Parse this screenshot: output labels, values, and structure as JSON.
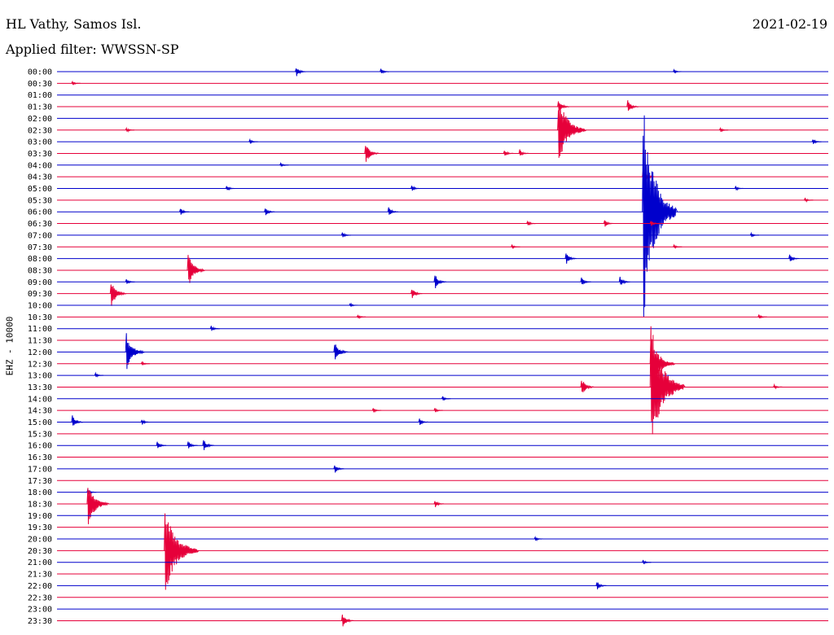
{
  "header": {
    "station": "HL Vathy, Samos Isl.",
    "filter": "Applied filter: WWSSN-SP",
    "date": "2021-02-19"
  },
  "axis": {
    "channel_label": "EHZ - 10000"
  },
  "colors": {
    "even_line": "#0000cc",
    "odd_line": "#e6003a"
  },
  "chart_data": {
    "type": "line",
    "title": "",
    "xlabel": "",
    "ylabel": "EHZ - 10000",
    "rows": [
      {
        "label": "00:00",
        "events": [
          [
            0.31,
            7
          ],
          [
            0.42,
            4
          ],
          [
            0.8,
            3
          ]
        ]
      },
      {
        "label": "00:30",
        "events": [
          [
            0.02,
            3
          ]
        ]
      },
      {
        "label": "01:00",
        "events": []
      },
      {
        "label": "01:30",
        "events": [
          [
            0.65,
            9
          ],
          [
            0.74,
            9
          ]
        ]
      },
      {
        "label": "02:00",
        "events": []
      },
      {
        "label": "02:30",
        "events": [
          [
            0.09,
            3
          ],
          [
            0.65,
            44
          ],
          [
            0.86,
            3
          ]
        ]
      },
      {
        "label": "03:00",
        "events": [
          [
            0.25,
            3
          ],
          [
            0.98,
            4
          ]
        ]
      },
      {
        "label": "03:30",
        "events": [
          [
            0.4,
            14
          ],
          [
            0.58,
            5
          ],
          [
            0.6,
            5
          ]
        ]
      },
      {
        "label": "04:00",
        "events": [
          [
            0.29,
            3
          ]
        ]
      },
      {
        "label": "04:30",
        "events": [
          [
            0.76,
            10
          ]
        ]
      },
      {
        "label": "05:00",
        "events": [
          [
            0.22,
            4
          ],
          [
            0.46,
            4
          ],
          [
            0.88,
            3
          ]
        ]
      },
      {
        "label": "05:30",
        "events": [
          [
            0.97,
            3
          ]
        ]
      },
      {
        "label": "06:00",
        "events": [
          [
            0.16,
            5
          ],
          [
            0.27,
            6
          ],
          [
            0.43,
            6
          ],
          [
            0.76,
            140
          ]
        ]
      },
      {
        "label": "06:30",
        "events": [
          [
            0.61,
            4
          ],
          [
            0.71,
            5
          ],
          [
            0.77,
            4
          ]
        ]
      },
      {
        "label": "07:00",
        "events": [
          [
            0.37,
            4
          ],
          [
            0.9,
            3
          ]
        ]
      },
      {
        "label": "07:30",
        "events": [
          [
            0.59,
            3
          ],
          [
            0.8,
            3
          ]
        ]
      },
      {
        "label": "08:00",
        "events": [
          [
            0.66,
            8
          ],
          [
            0.95,
            6
          ]
        ]
      },
      {
        "label": "08:30",
        "events": [
          [
            0.17,
            22
          ]
        ]
      },
      {
        "label": "09:00",
        "events": [
          [
            0.09,
            4
          ],
          [
            0.49,
            10
          ],
          [
            0.68,
            6
          ],
          [
            0.73,
            7
          ]
        ]
      },
      {
        "label": "09:30",
        "events": [
          [
            0.07,
            18
          ],
          [
            0.46,
            8
          ]
        ]
      },
      {
        "label": "10:00",
        "events": [
          [
            0.38,
            3
          ]
        ]
      },
      {
        "label": "10:30",
        "events": [
          [
            0.39,
            3
          ],
          [
            0.91,
            3
          ]
        ]
      },
      {
        "label": "11:00",
        "events": [
          [
            0.2,
            4
          ]
        ]
      },
      {
        "label": "11:30",
        "events": []
      },
      {
        "label": "12:00",
        "events": [
          [
            0.09,
            24
          ],
          [
            0.36,
            14
          ]
        ]
      },
      {
        "label": "12:30",
        "events": [
          [
            0.11,
            3
          ],
          [
            0.77,
            36
          ]
        ]
      },
      {
        "label": "13:00",
        "events": [
          [
            0.05,
            3
          ]
        ]
      },
      {
        "label": "13:30",
        "events": [
          [
            0.68,
            12
          ],
          [
            0.77,
            80
          ],
          [
            0.93,
            3
          ]
        ]
      },
      {
        "label": "14:00",
        "events": [
          [
            0.5,
            3
          ]
        ]
      },
      {
        "label": "14:30",
        "events": [
          [
            0.41,
            3
          ],
          [
            0.49,
            3
          ]
        ]
      },
      {
        "label": "15:00",
        "events": [
          [
            0.02,
            9
          ],
          [
            0.11,
            4
          ],
          [
            0.47,
            5
          ]
        ]
      },
      {
        "label": "15:30",
        "events": []
      },
      {
        "label": "16:00",
        "events": [
          [
            0.13,
            5
          ],
          [
            0.17,
            6
          ],
          [
            0.19,
            8
          ]
        ]
      },
      {
        "label": "16:30",
        "events": []
      },
      {
        "label": "17:00",
        "events": [
          [
            0.36,
            6
          ]
        ]
      },
      {
        "label": "17:30",
        "events": []
      },
      {
        "label": "18:00",
        "events": [
          [
            0.04,
            4
          ]
        ]
      },
      {
        "label": "18:30",
        "events": [
          [
            0.04,
            30
          ],
          [
            0.49,
            5
          ]
        ]
      },
      {
        "label": "19:00",
        "events": []
      },
      {
        "label": "19:30",
        "events": []
      },
      {
        "label": "20:00",
        "events": [
          [
            0.62,
            3
          ]
        ]
      },
      {
        "label": "20:30",
        "events": [
          [
            0.14,
            56
          ]
        ]
      },
      {
        "label": "21:00",
        "events": [
          [
            0.76,
            3
          ]
        ]
      },
      {
        "label": "21:30",
        "events": []
      },
      {
        "label": "22:00",
        "events": [
          [
            0.7,
            6
          ]
        ]
      },
      {
        "label": "22:30",
        "events": []
      },
      {
        "label": "23:00",
        "events": []
      },
      {
        "label": "23:30",
        "events": [
          [
            0.37,
            10
          ]
        ]
      }
    ]
  }
}
